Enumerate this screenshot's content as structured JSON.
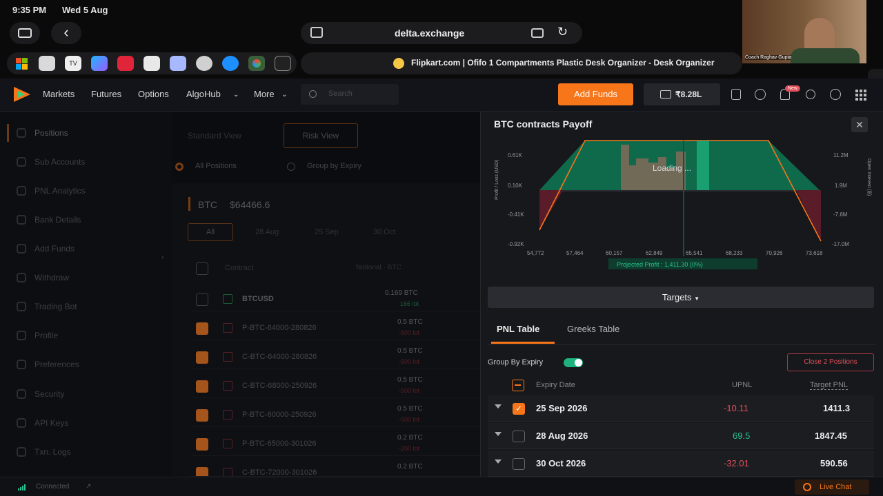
{
  "ipad": {
    "time": "9:35 PM",
    "date": "Wed 5 Aug",
    "address": "delta.exchange",
    "tab_title": "Flipkart.com | Ofifo 1 Compartments Plastic Desk Organizer - Desk Organizer",
    "video_caption": "Coach Raghav Gupta"
  },
  "header": {
    "nav": [
      "Markets",
      "Futures",
      "Options",
      "AlgoHub",
      "More"
    ],
    "search_placeholder": "Search",
    "add_funds": "Add Funds",
    "balance": "₹8.28L",
    "new_badge": "New"
  },
  "sidebar": {
    "items": [
      "Positions",
      "Sub Accounts",
      "PNL Analytics",
      "Bank Details",
      "Add Funds",
      "Withdraw",
      "Trading Bot",
      "Profile",
      "Preferences",
      "Security",
      "API Keys",
      "Txn. Logs"
    ]
  },
  "main": {
    "views": [
      "Standard View",
      "Risk View"
    ],
    "radio": [
      "All Positions",
      "Group by Expiry"
    ],
    "asset": "BTC",
    "price": "$64466.6",
    "expiry_tabs": [
      "All",
      "28 Aug",
      "25 Sep",
      "30 Oct"
    ],
    "col_contract": "Contract",
    "col_notional": "Notional · BTC",
    "rows": [
      {
        "contract": "BTCUSD",
        "qty": "0.169 BTC",
        "sub": "166 lot"
      },
      {
        "contract": "P-BTC-64000-280826",
        "qty": "0.5 BTC",
        "sub": "-500 lot"
      },
      {
        "contract": "C-BTC-64000-280826",
        "qty": "0.5 BTC",
        "sub": "-500 lot"
      },
      {
        "contract": "C-BTC-68000-250926",
        "qty": "0.5 BTC",
        "sub": "-500 lot"
      },
      {
        "contract": "P-BTC-60000-250926",
        "qty": "0.5 BTC",
        "sub": "-500 lot"
      },
      {
        "contract": "P-BTC-65000-301026",
        "qty": "0.2 BTC",
        "sub": "-200 lot"
      },
      {
        "contract": "C-BTC-72000-301026",
        "qty": "0.2 BTC",
        "sub": ""
      }
    ]
  },
  "panel": {
    "title": "BTC contracts Payoff",
    "loading": "Loading ...",
    "y_left_label": "Profit / Loss (USD)",
    "y_right_label": "Open Interest (₿)",
    "y_left_ticks": [
      "0.61K",
      "0.10K",
      "-0.41K",
      "-0.92K"
    ],
    "y_right_ticks": [
      "11.2M",
      "1.9M",
      "-7.6M",
      "-17.0M"
    ],
    "x_ticks": [
      "54,772",
      "57,464",
      "60,157",
      "62,849",
      "65,541",
      "68,233",
      "70,926",
      "73,618"
    ],
    "projected_profit": "Projected Profit : 1,411.30 (0%)",
    "targets": "Targets",
    "tabs": [
      "PNL Table",
      "Greeks Table"
    ],
    "group_by_expiry": "Group By Expiry",
    "close_positions": "Close 2 Positions",
    "col_expiry": "Expiry Date",
    "col_upnl": "UPNL",
    "col_target": "Target PNL",
    "rows": [
      {
        "date": "25 Sep 2026",
        "upnl": "-10.11",
        "target": "1411.3",
        "checked": true
      },
      {
        "date": "28 Aug 2026",
        "upnl": "69.5",
        "target": "1847.45",
        "checked": false
      },
      {
        "date": "30 Oct 2026",
        "upnl": "-32.01",
        "target": "590.56",
        "checked": false
      }
    ]
  },
  "footer": {
    "connected": "Connected",
    "live_chat": "Live Chat"
  },
  "colors": {
    "accent": "#f7761a",
    "profit": "#0f7a57",
    "loss": "#6b1f2c",
    "green_text": "#27c28e",
    "red_text": "#e0505a"
  }
}
